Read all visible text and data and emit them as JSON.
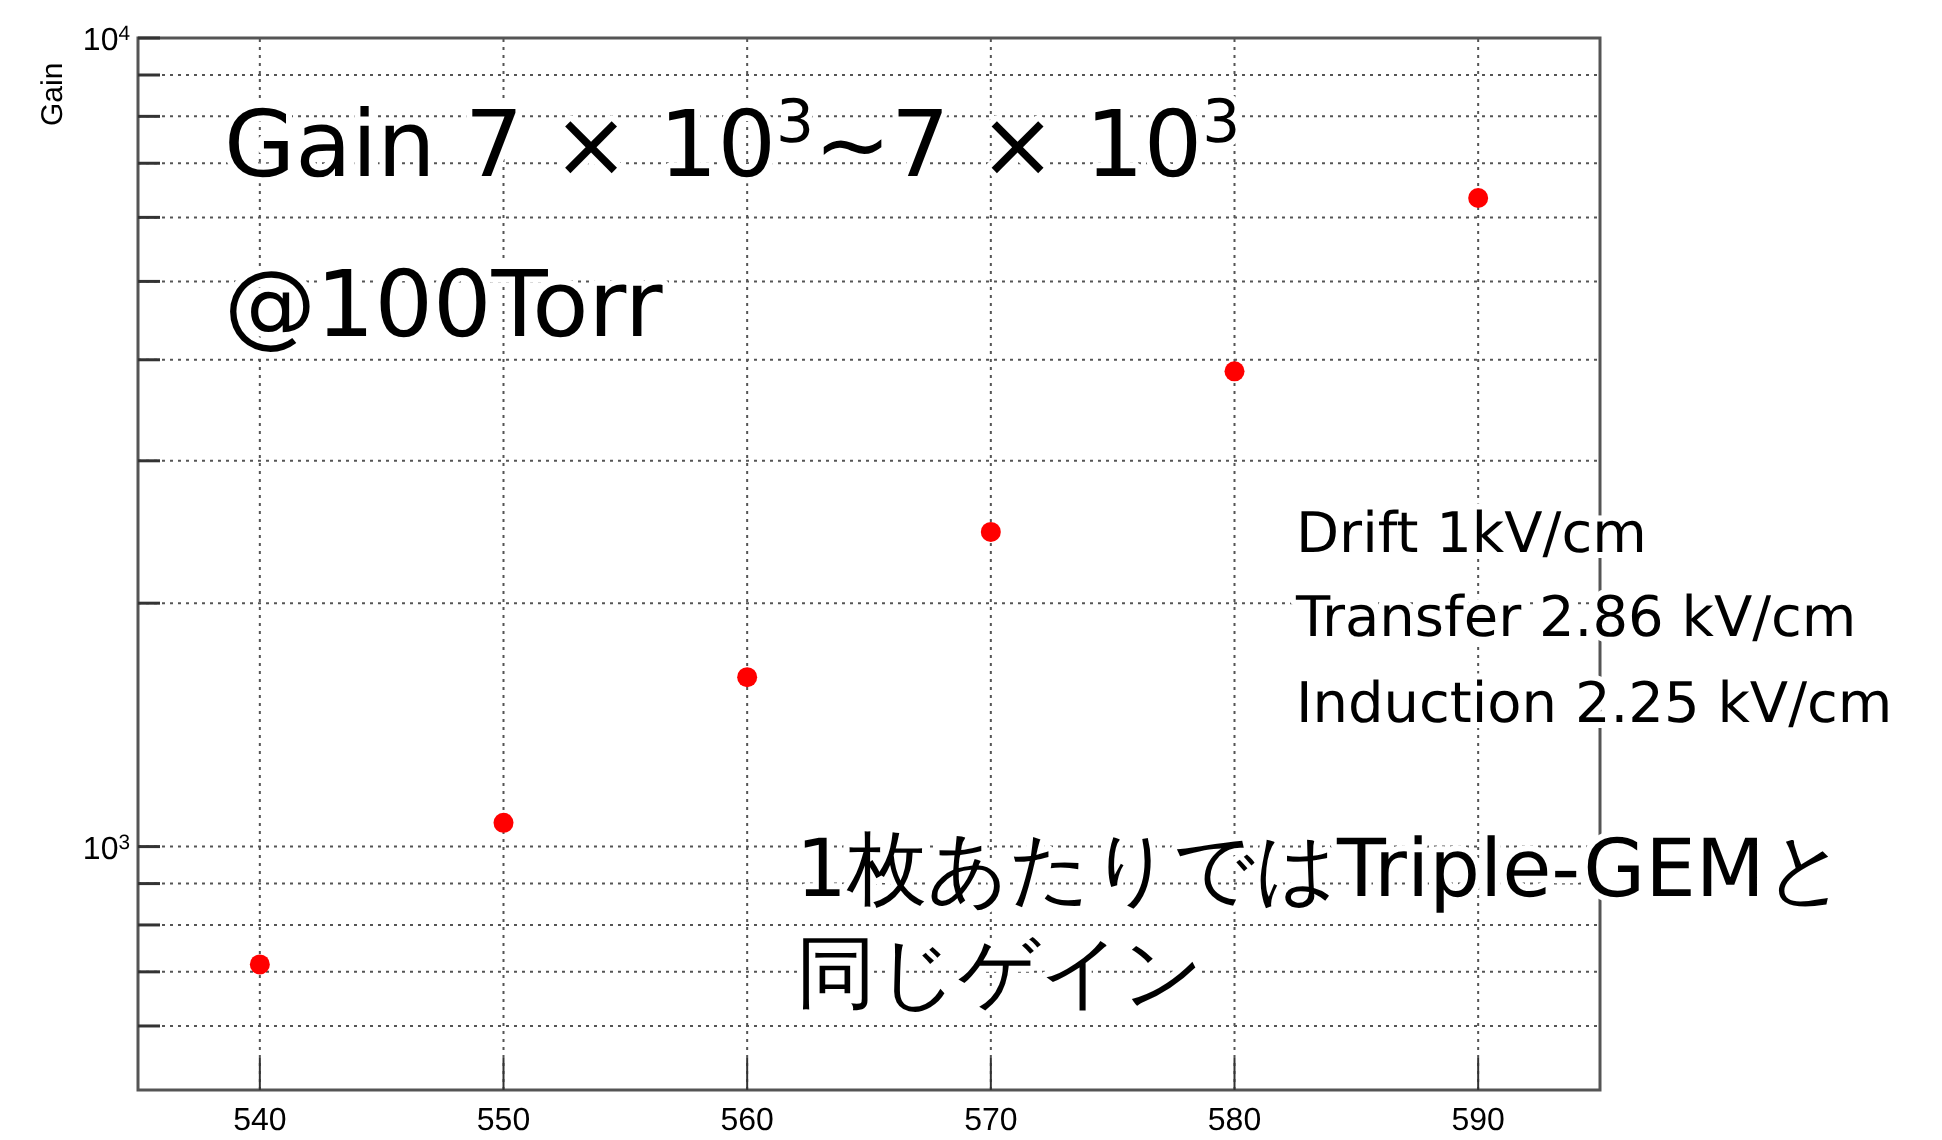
{
  "chart_data": {
    "type": "scatter",
    "ylabel": "Gain",
    "x": [
      540,
      550,
      560,
      570,
      580,
      590
    ],
    "series": [
      {
        "color": "#ff0000",
        "values": [
          715,
          1070,
          1620,
          2450,
          3870,
          6340
        ]
      }
    ],
    "xlim": [
      535,
      595
    ],
    "xticks": [
      540,
      550,
      560,
      570,
      580,
      590
    ],
    "ylim": [
      500,
      10000
    ],
    "log": "y",
    "yticks": [
      {
        "value": 600,
        "label": null
      },
      {
        "value": 700,
        "label": null
      },
      {
        "value": 800,
        "label": null
      },
      {
        "value": 900,
        "label": null
      },
      {
        "value": 1000,
        "label": "10$^{3}$"
      },
      {
        "value": 2000,
        "label": null
      },
      {
        "value": 3000,
        "label": null
      },
      {
        "value": 4000,
        "label": null
      },
      {
        "value": 5000,
        "label": null
      },
      {
        "value": 6000,
        "label": null
      },
      {
        "value": 7000,
        "label": null
      },
      {
        "value": 8000,
        "label": null
      },
      {
        "value": 9000,
        "label": null
      },
      {
        "value": 10000,
        "label": "10$^{4}$"
      }
    ],
    "grid": true,
    "marker": "circle",
    "annotations": [
      "Gain 7 × 10$^{3}$~7 × 10$^{3}$",
      "@100Torr",
      "Drift 1kV/cm",
      "Transfer 2.86 kV/cm",
      "Induction 2.25 kV/cm",
      "1枚あたりではTriple-GEMと",
      "同じゲイン"
    ]
  }
}
